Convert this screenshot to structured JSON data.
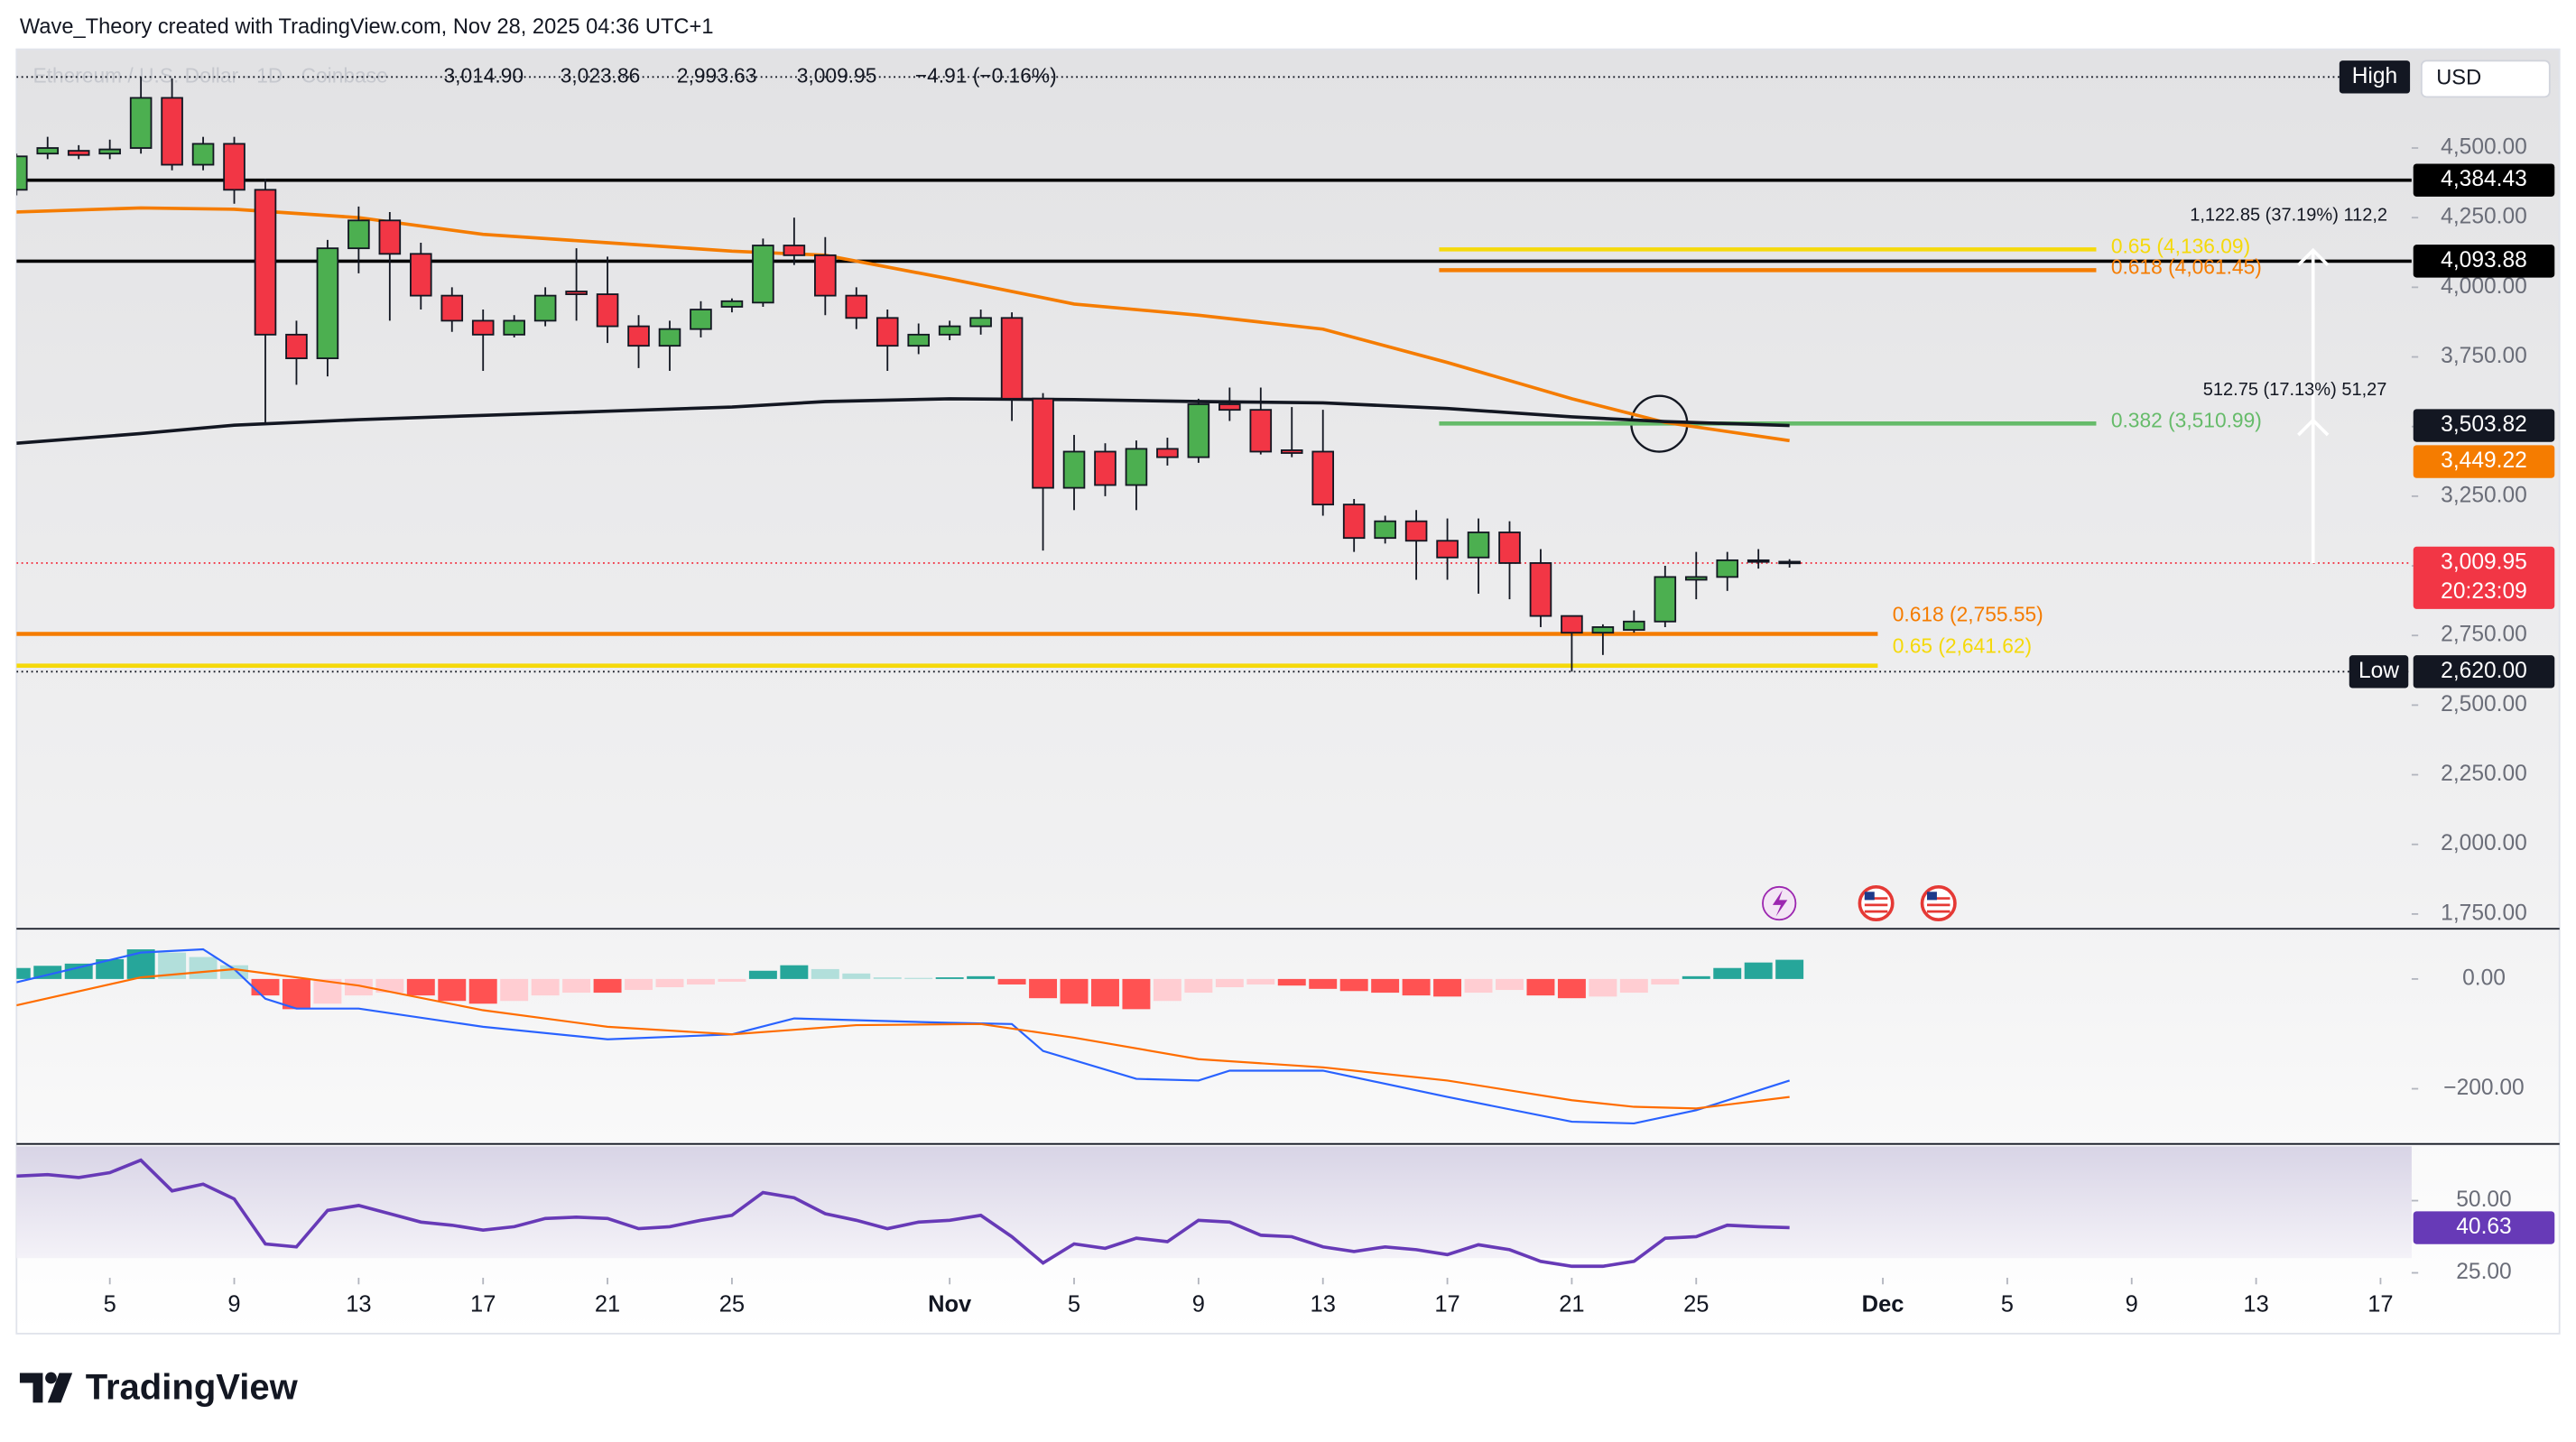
{
  "header": {
    "attribution": "Wave_Theory created with TradingView.com, Nov 28, 2025 04:36 UTC+1"
  },
  "chart_data": {
    "type": "candlestick",
    "legend": {
      "symbol": "Ethereum / U.S. Dollar · 1D · Coinbase",
      "open": "3,014.90",
      "high": "3,023.86",
      "low": "2,993.63",
      "close": "3,009.95",
      "change": "−4.91 (−0.16%)"
    },
    "x": [
      "Oct 2",
      "Oct 3",
      "Oct 4",
      "Oct 5",
      "Oct 6",
      "Oct 7",
      "Oct 8",
      "Oct 9",
      "Oct 10",
      "Oct 11",
      "Oct 12",
      "Oct 13",
      "Oct 14",
      "Oct 15",
      "Oct 16",
      "Oct 17",
      "Oct 18",
      "Oct 19",
      "Oct 20",
      "Oct 21",
      "Oct 22",
      "Oct 23",
      "Oct 24",
      "Oct 25",
      "Oct 26",
      "Oct 27",
      "Oct 28",
      "Oct 29",
      "Oct 30",
      "Oct 31",
      "Nov 1",
      "Nov 2",
      "Nov 3",
      "Nov 4",
      "Nov 5",
      "Nov 6",
      "Nov 7",
      "Nov 8",
      "Nov 9",
      "Nov 10",
      "Nov 11",
      "Nov 12",
      "Nov 13",
      "Nov 14",
      "Nov 15",
      "Nov 16",
      "Nov 17",
      "Nov 18",
      "Nov 19",
      "Nov 20",
      "Nov 21",
      "Nov 22",
      "Nov 23",
      "Nov 24",
      "Nov 25",
      "Nov 26",
      "Nov 27",
      "Nov 28"
    ],
    "open": [
      4350,
      4480,
      4490,
      4480,
      4500,
      4680,
      4440,
      4515,
      4350,
      3830,
      3745,
      4140,
      4240,
      4120,
      3970,
      3880,
      3830,
      3880,
      3985,
      3975,
      3860,
      3790,
      3850,
      3930,
      3945,
      4150,
      4115,
      3970,
      3890,
      3790,
      3830,
      3860,
      3890,
      3600,
      3280,
      3410,
      3290,
      3420,
      3390,
      3580,
      3560,
      3415,
      3410,
      3220,
      3100,
      3160,
      3090,
      3030,
      3120,
      3010,
      2820,
      2760,
      2770,
      2800,
      2950,
      2960,
      3020,
      3014.9
    ],
    "high": [
      4480,
      4540,
      4510,
      4530,
      4755,
      4750,
      4540,
      4540,
      4390,
      3880,
      4170,
      4290,
      4270,
      4160,
      4000,
      3920,
      3900,
      4000,
      4140,
      4110,
      3900,
      3880,
      3950,
      3960,
      4175,
      4250,
      4180,
      4000,
      3920,
      3870,
      3880,
      3920,
      3910,
      3620,
      3470,
      3440,
      3450,
      3460,
      3600,
      3640,
      3640,
      3570,
      3560,
      3240,
      3180,
      3200,
      3170,
      3170,
      3160,
      3060,
      2820,
      2790,
      2840,
      3000,
      3050,
      3050,
      3060,
      3023.86
    ],
    "low": [
      4330,
      4460,
      4460,
      4460,
      4480,
      4420,
      4420,
      4300,
      3510,
      3650,
      3680,
      4050,
      3880,
      3920,
      3840,
      3700,
      3820,
      3860,
      3880,
      3800,
      3710,
      3700,
      3820,
      3910,
      3930,
      4080,
      3900,
      3850,
      3700,
      3760,
      3810,
      3830,
      3520,
      3055,
      3200,
      3250,
      3200,
      3360,
      3370,
      3520,
      3400,
      3390,
      3180,
      3050,
      3080,
      2950,
      2950,
      2900,
      2880,
      2780,
      2620,
      2680,
      2760,
      2780,
      2880,
      2910,
      2990,
      2993.63
    ],
    "close": [
      4470,
      4500,
      4475,
      4495,
      4680,
      4440,
      4515,
      4350,
      3830,
      3745,
      4140,
      4240,
      4120,
      3970,
      3880,
      3830,
      3880,
      3970,
      3975,
      3860,
      3790,
      3850,
      3920,
      3950,
      4150,
      4115,
      3970,
      3890,
      3790,
      3830,
      3860,
      3890,
      3600,
      3280,
      3410,
      3290,
      3420,
      3390,
      3580,
      3560,
      3410,
      3405,
      3220,
      3100,
      3160,
      3090,
      3030,
      3120,
      3010,
      2820,
      2760,
      2780,
      2800,
      2960,
      2960,
      3020,
      3015,
      3009.95
    ],
    "up_color": "#4caf50",
    "down_color": "#f23645",
    "xlim": [
      "Oct 2",
      "Dec 18"
    ],
    "xticks": [
      {
        "value": "Oct 5",
        "label": "5"
      },
      {
        "value": "Oct 9",
        "label": "9"
      },
      {
        "value": "Oct 13",
        "label": "13"
      },
      {
        "value": "Oct 17",
        "label": "17"
      },
      {
        "value": "Oct 21",
        "label": "21"
      },
      {
        "value": "Oct 25",
        "label": "25"
      },
      {
        "value": "Nov 1",
        "label": "Nov"
      },
      {
        "value": "Nov 5",
        "label": "5"
      },
      {
        "value": "Nov 9",
        "label": "9"
      },
      {
        "value": "Nov 13",
        "label": "13"
      },
      {
        "value": "Nov 17",
        "label": "17"
      },
      {
        "value": "Nov 21",
        "label": "21"
      },
      {
        "value": "Nov 25",
        "label": "25"
      },
      {
        "value": "Dec 1",
        "label": "Dec"
      },
      {
        "value": "Dec 5",
        "label": "5"
      },
      {
        "value": "Dec 9",
        "label": "9"
      },
      {
        "value": "Dec 13",
        "label": "13"
      },
      {
        "value": "Dec 17",
        "label": "17"
      }
    ],
    "ylim": [
      1700,
      4825
    ],
    "yticks": [
      {
        "value": 1750,
        "label": "1,750.00"
      },
      {
        "value": 2000,
        "label": "2,000.00"
      },
      {
        "value": 2250,
        "label": "2,250.00"
      },
      {
        "value": 2500,
        "label": "2,500.00"
      },
      {
        "value": 2750,
        "label": "2,750.00"
      },
      {
        "value": 3000,
        "label": "3,000.00"
      },
      {
        "value": 3250,
        "label": "3,250.00"
      },
      {
        "value": 3500,
        "label": "3,500.00"
      },
      {
        "value": 3750,
        "label": "3,750.00"
      },
      {
        "value": 4000,
        "label": "4,000.00"
      },
      {
        "value": 4250,
        "label": "4,250.00"
      },
      {
        "value": 4500,
        "label": "4,500.00"
      }
    ],
    "levels": [
      {
        "value": 4384.43,
        "label": "4,384.43",
        "color": "#000000"
      },
      {
        "value": 4093.88,
        "label": "4,093.88",
        "color": "#000000"
      }
    ],
    "moving_averages": [
      {
        "color": "#f57c00",
        "x": [
          "Oct 2",
          "Oct 6",
          "Oct 9",
          "Oct 13",
          "Oct 17",
          "Oct 21",
          "Oct 25",
          "Oct 28",
          "Nov 1",
          "Nov 5",
          "Nov 9",
          "Nov 13",
          "Nov 17",
          "Nov 21",
          "Nov 24",
          "Nov 28"
        ],
        "values": [
          4270,
          4285,
          4280,
          4250,
          4190,
          4160,
          4130,
          4115,
          4030,
          3940,
          3900,
          3850,
          3730,
          3600,
          3515,
          3449.22
        ],
        "badge": {
          "value": 3449.22,
          "label": "3,449.22"
        }
      },
      {
        "color": "#131722",
        "x": [
          "Oct 2",
          "Oct 6",
          "Oct 9",
          "Oct 13",
          "Oct 17",
          "Oct 21",
          "Oct 25",
          "Oct 28",
          "Nov 1",
          "Nov 5",
          "Nov 9",
          "Nov 13",
          "Nov 17",
          "Nov 21",
          "Nov 24",
          "Nov 28"
        ],
        "values": [
          3440,
          3475,
          3505,
          3525,
          3540,
          3555,
          3570,
          3590,
          3600,
          3597,
          3590,
          3585,
          3565,
          3535,
          3518,
          3503.82
        ],
        "badge": {
          "value": 3503.82,
          "label": "3,503.82"
        }
      }
    ],
    "fib_upper": [
      {
        "value": 4136.09,
        "label": "0.65 (4,136.09)",
        "color": "#f5d90a"
      },
      {
        "value": 4061.45,
        "label": "0.618 (4,061.45)",
        "color": "#f57c00"
      },
      {
        "value": 3510.99,
        "label": "0.382 (3,510.99)",
        "color": "#66bb6a"
      }
    ],
    "fib_lower": [
      {
        "value": 2755.55,
        "label": "0.618 (2,755.55)",
        "color": "#f57c00"
      },
      {
        "value": 2641.62,
        "label": "0.65 (2,641.62)",
        "color": "#f5d90a"
      }
    ],
    "last_price": {
      "value": 3009.95,
      "label": "3,009.95",
      "countdown": "20:23:09",
      "color": "#f23645"
    },
    "high_marker": {
      "value": 4755,
      "label": "High"
    },
    "low_marker": {
      "value": 2620,
      "label": "Low",
      "price_label": "2,620.00"
    },
    "currency": "USD",
    "measure": {
      "from": 3009.95,
      "to": 4132.8,
      "mid": 3522.7,
      "label": "1,122.85 (37.19%) 112,2",
      "mid_label": "512.75 (17.13%) 51,27"
    },
    "macd": {
      "ylim": [
        -296,
        90
      ],
      "yticks": [
        {
          "value": 0,
          "label": "0.00"
        },
        {
          "value": -200,
          "label": "−200.00"
        }
      ],
      "histogram": [
        20,
        24,
        28,
        36,
        54,
        48,
        40,
        25,
        -30,
        -55,
        -45,
        -30,
        -25,
        -30,
        -40,
        -45,
        -40,
        -30,
        -25,
        -25,
        -20,
        -15,
        -10,
        -5,
        15,
        25,
        18,
        10,
        3,
        2,
        3,
        5,
        -10,
        -35,
        -45,
        -50,
        -55,
        -40,
        -25,
        -15,
        -10,
        -12,
        -18,
        -22,
        -25,
        -30,
        -32,
        -25,
        -20,
        -30,
        -35,
        -32,
        -25,
        -10,
        5,
        20,
        30,
        35
      ],
      "colors": {
        "up_strong": "#26a69a",
        "up_weak": "#b2dfdb",
        "down_strong": "#ff5252",
        "down_weak": "#ffcdd2"
      },
      "macd_line": {
        "color": "#2962ff",
        "x": [
          "Oct 2",
          "Oct 6",
          "Oct 8",
          "Oct 9",
          "Oct 10",
          "Oct 11",
          "Oct 13",
          "Oct 17",
          "Oct 21",
          "Oct 25",
          "Oct 27",
          "Nov 1",
          "Nov 3",
          "Nov 4",
          "Nov 7",
          "Nov 9",
          "Nov 10",
          "Nov 13",
          "Nov 17",
          "Nov 21",
          "Nov 23",
          "Nov 25",
          "Nov 28"
        ],
        "values": [
          -6,
          48,
          54,
          18,
          -36,
          -54,
          -54,
          -87,
          -110,
          -101,
          -72,
          -80,
          -82,
          -131,
          -182,
          -185,
          -167,
          -167,
          -215,
          -260,
          -263,
          -239,
          -185
        ]
      },
      "signal_line": {
        "color": "#ff6d00",
        "x": [
          "Oct 2",
          "Oct 6",
          "Oct 9",
          "Oct 13",
          "Oct 17",
          "Oct 21",
          "Oct 25",
          "Oct 29",
          "Nov 2",
          "Nov 5",
          "Nov 9",
          "Nov 13",
          "Nov 17",
          "Nov 21",
          "Nov 23",
          "Nov 25",
          "Nov 28"
        ],
        "values": [
          -48,
          3,
          18,
          -12,
          -57,
          -87,
          -101,
          -84,
          -82,
          -107,
          -146,
          -161,
          -185,
          -221,
          -233,
          -236,
          -215
        ]
      }
    },
    "rsi": {
      "ylim": [
        25,
        68.8
      ],
      "yticks": [
        {
          "value": 50,
          "label": "50.00"
        },
        {
          "value": 25,
          "label": "25.00"
        }
      ],
      "color": "#673ab7",
      "values": [
        58.5,
        59,
        58,
        59.7,
        64,
        53.4,
        55.7,
        50.6,
        35,
        34,
        46.6,
        48.3,
        45.5,
        42.6,
        41.5,
        39.8,
        41,
        43.8,
        44.3,
        43.8,
        40.3,
        41,
        43.2,
        44.9,
        52.8,
        51,
        45.5,
        43.2,
        40.3,
        42.6,
        43.2,
        44.9,
        37.5,
        28.4,
        35,
        33.5,
        37,
        35.8,
        43.2,
        42.6,
        38,
        37.5,
        34,
        32.4,
        34,
        33,
        31.3,
        34.7,
        33,
        29,
        27.3,
        27.3,
        29,
        37,
        37.5,
        41.5,
        41,
        40.63
      ],
      "badge": {
        "value": 40.63,
        "label": "40.63"
      }
    }
  },
  "footer": {
    "brand": "TradingView"
  }
}
